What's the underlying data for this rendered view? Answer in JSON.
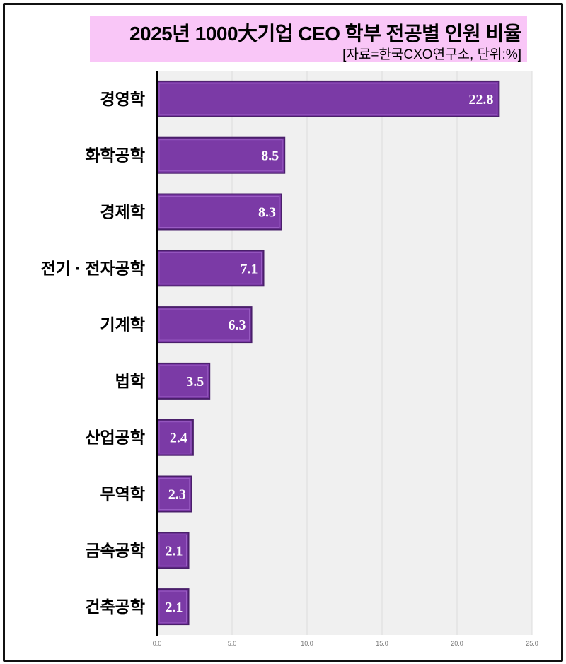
{
  "chart_data": {
    "type": "bar",
    "orientation": "horizontal",
    "title": "2025년 1000大기업 CEO 학부 전공별 인원 비율",
    "subtitle": "[자료=한국CXO연구소, 단위:%]",
    "categories": [
      "경영학",
      "화학공학",
      "경제학",
      "전기 · 전자공학",
      "기계학",
      "법학",
      "산업공학",
      "무역학",
      "금속공학",
      "건축공학"
    ],
    "values": [
      22.8,
      8.5,
      8.3,
      7.1,
      6.3,
      3.5,
      2.4,
      2.3,
      2.1,
      2.1
    ],
    "data_labels": [
      "22.8",
      "8.5",
      "8.3",
      "7.1",
      "6.3",
      "3.5",
      "2.4",
      "2.3",
      "2.1",
      "2.1"
    ],
    "xlim": [
      0,
      25
    ],
    "x_ticks": [
      "0.0",
      "5.0",
      "10.0",
      "15.0",
      "20.0",
      "25.0"
    ],
    "grid": true,
    "colors": {
      "bar": "#7b3aa6",
      "bar_edge": "#4a1f6b",
      "title_bg": "#f9c6f7",
      "plot_bg": "#f0f0f0"
    }
  }
}
